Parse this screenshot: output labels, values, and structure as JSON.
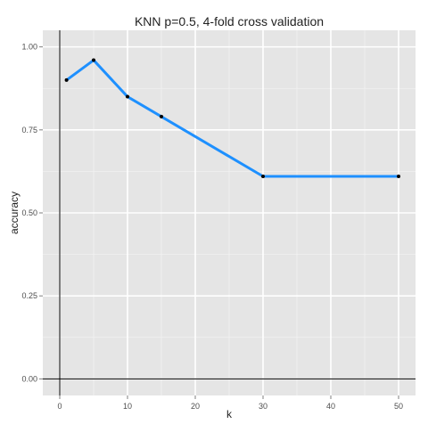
{
  "chart_data": {
    "type": "line",
    "title": "KNN p=0.5, 4-fold cross validation",
    "xlabel": "k",
    "ylabel": "accuracy",
    "xlim": [
      -2.5,
      52.5
    ],
    "ylim": [
      -0.05,
      1.05
    ],
    "x_ticks": [
      0,
      10,
      20,
      30,
      40,
      50
    ],
    "x_tick_labels": [
      "0",
      "10",
      "20",
      "30",
      "40",
      "50"
    ],
    "y_ticks": [
      0,
      0.25,
      0.5,
      0.75,
      1.0
    ],
    "y_tick_labels": [
      "0.00",
      "0.25",
      "0.50",
      "0.75",
      "1.00"
    ],
    "x_minor_ticks": [
      5,
      15,
      25,
      35,
      45
    ],
    "y_minor_ticks": [
      0.125,
      0.375,
      0.625,
      0.875
    ],
    "grid": true,
    "reference_lines": {
      "x": 0,
      "y": 0
    },
    "colors": {
      "panel": "#e5e5e5",
      "grid_major": "#ffffff",
      "grid_minor": "#f2f2f2",
      "line": "#1e90ff",
      "point": "#000000",
      "reference": "#000000",
      "text": "#222222",
      "tick_label": "#4d4d4d"
    },
    "series": [
      {
        "x": [
          1,
          5,
          10,
          15,
          30,
          50
        ],
        "y": [
          0.9,
          0.96,
          0.85,
          0.79,
          0.61,
          0.61
        ]
      }
    ]
  }
}
